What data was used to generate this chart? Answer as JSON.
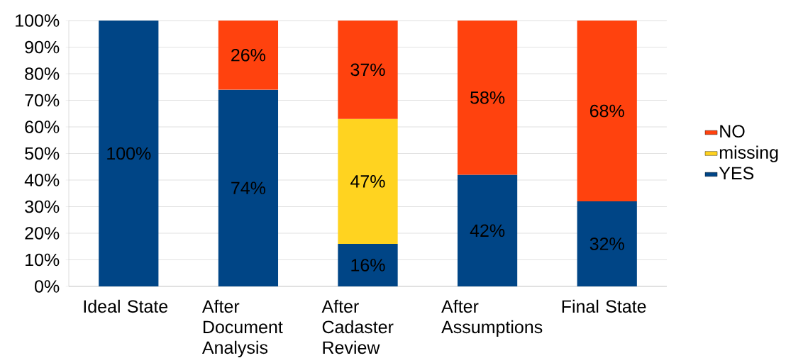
{
  "chart_data": {
    "type": "bar",
    "stacked": true,
    "categories": [
      "Ideal State",
      "After Document Analysis",
      "After Cadaster Review",
      "After Assumptions",
      "Final State"
    ],
    "series": [
      {
        "name": "YES",
        "color": "#004586",
        "values": [
          100,
          74,
          16,
          42,
          32
        ],
        "value_labels": [
          "100%",
          "74%",
          "16%",
          "42%",
          "32%"
        ]
      },
      {
        "name": "missing",
        "color": "#ffd320",
        "values": [
          null,
          null,
          47,
          null,
          null
        ],
        "value_labels": [
          null,
          null,
          "47%",
          null,
          null
        ]
      },
      {
        "name": "NO",
        "color": "#ff420e",
        "values": [
          null,
          26,
          37,
          58,
          68
        ],
        "value_labels": [
          null,
          "26%",
          "37%",
          "58%",
          "68%"
        ]
      }
    ],
    "ylim": [
      0,
      100
    ],
    "yticks": [
      {
        "value": 0,
        "label": "0%"
      },
      {
        "value": 10,
        "label": "10%"
      },
      {
        "value": 20,
        "label": "20%"
      },
      {
        "value": 30,
        "label": "30%"
      },
      {
        "value": 40,
        "label": "40%"
      },
      {
        "value": 50,
        "label": "50%"
      },
      {
        "value": 60,
        "label": "60%"
      },
      {
        "value": 70,
        "label": "70%"
      },
      {
        "value": 80,
        "label": "80%"
      },
      {
        "value": 90,
        "label": "90%"
      },
      {
        "value": 100,
        "label": "100%"
      }
    ],
    "grid": "y",
    "legend": "right"
  }
}
